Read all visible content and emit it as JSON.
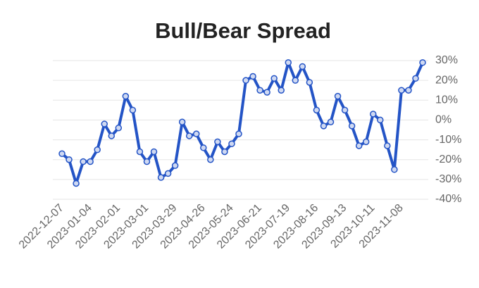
{
  "chart_data": {
    "type": "line",
    "title": "Bull/Bear Spread",
    "categories": [
      "2022-12-07",
      null,
      null,
      null,
      "2023-01-04",
      null,
      null,
      null,
      "2023-02-01",
      null,
      null,
      null,
      "2023-03-01",
      null,
      null,
      null,
      "2023-03-29",
      null,
      null,
      null,
      "2023-04-26",
      null,
      null,
      null,
      "2023-05-24",
      null,
      null,
      null,
      "2023-06-21",
      null,
      null,
      null,
      "2023-07-19",
      null,
      null,
      null,
      "2023-08-16",
      null,
      null,
      null,
      "2023-09-13",
      null,
      null,
      null,
      "2023-10-11",
      null,
      null,
      null,
      "2023-11-08",
      null,
      null,
      null
    ],
    "values": [
      -17,
      -20,
      -32,
      -21,
      -21,
      -15,
      -2,
      -8,
      -4,
      12,
      5,
      -16,
      -21,
      -16,
      -29,
      -27,
      -23,
      -1,
      -8,
      -7,
      -14,
      -20,
      -11,
      -16,
      -12,
      -7,
      20,
      22,
      15,
      14,
      21,
      15,
      29,
      20,
      27,
      19,
      5,
      -3,
      -1,
      12,
      5,
      -3,
      -13,
      -11,
      3,
      0,
      -13,
      -25,
      15,
      15,
      21,
      29
    ],
    "color": "#2454c6",
    "ylim": [
      -40,
      30
    ],
    "yticks": [
      {
        "value": 30,
        "label": "30%"
      },
      {
        "value": 20,
        "label": "20%"
      },
      {
        "value": 10,
        "label": "10%"
      },
      {
        "value": 0,
        "label": "0%"
      },
      {
        "value": -10,
        "label": "-10%"
      },
      {
        "value": -20,
        "label": "-20%"
      },
      {
        "value": -30,
        "label": "-30%"
      },
      {
        "value": -40,
        "label": "-40%"
      }
    ],
    "grid": true
  }
}
